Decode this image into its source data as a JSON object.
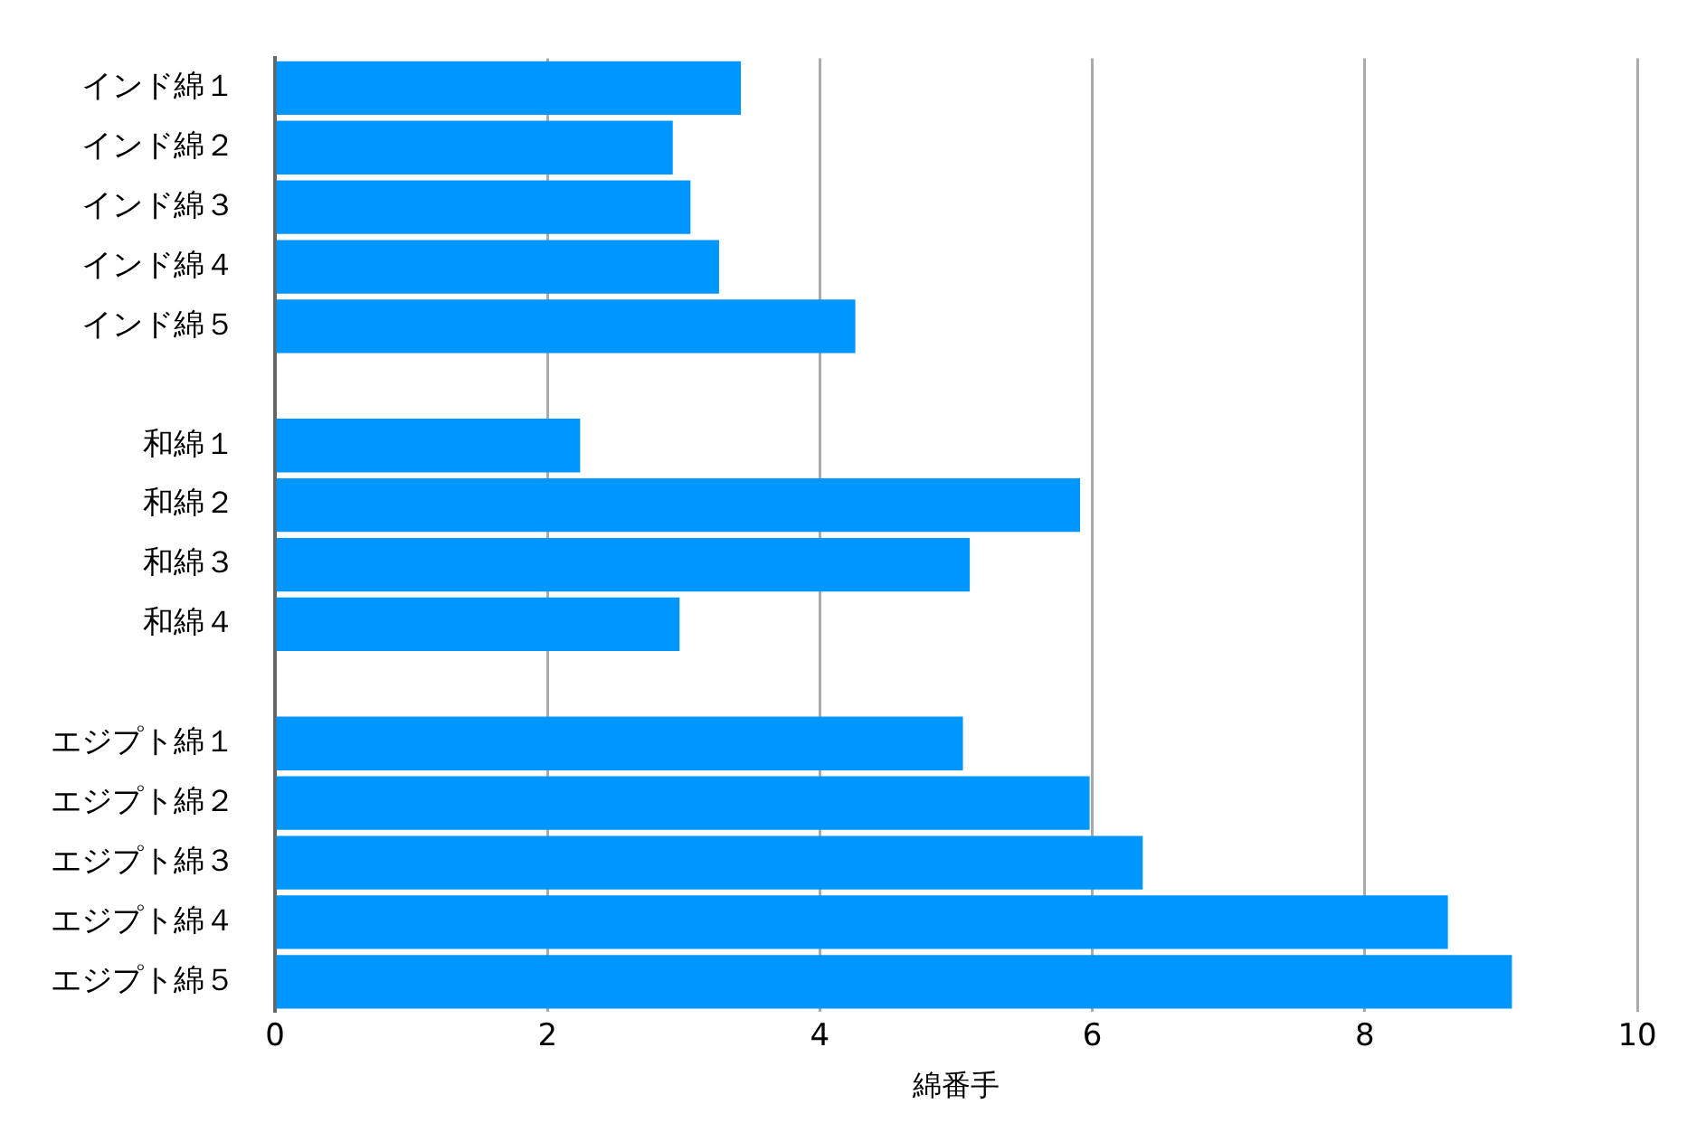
{
  "chart_data": {
    "type": "bar",
    "orientation": "horizontal",
    "xlabel": "綿番手",
    "categories": [
      "インド綿１",
      "インド綿２",
      "インド綿３",
      "インド綿４",
      "インド綿５",
      null,
      "和綿１",
      "和綿２",
      "和綿３",
      "和綿４",
      null,
      "エジプト綿１",
      "エジプト綿２",
      "エジプト綿３",
      "エジプト綿４",
      "エジプト綿５"
    ],
    "values": [
      3.42,
      2.92,
      3.05,
      3.26,
      4.26,
      null,
      2.24,
      5.91,
      5.1,
      2.97,
      null,
      5.05,
      5.98,
      6.37,
      8.61,
      9.08
    ],
    "color": "#0096ff",
    "xlim": [
      0,
      10
    ],
    "xticks": [
      0,
      2,
      4,
      6,
      8,
      10
    ],
    "grid": "x"
  }
}
